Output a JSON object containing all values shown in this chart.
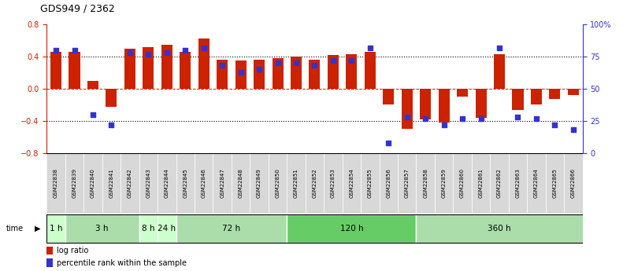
{
  "title": "GDS949 / 2362",
  "samples": [
    "GSM22838",
    "GSM22839",
    "GSM22840",
    "GSM22841",
    "GSM22842",
    "GSM22843",
    "GSM22844",
    "GSM22845",
    "GSM22846",
    "GSM22847",
    "GSM22848",
    "GSM22849",
    "GSM22850",
    "GSM22851",
    "GSM22852",
    "GSM22853",
    "GSM22854",
    "GSM22855",
    "GSM22856",
    "GSM22857",
    "GSM22858",
    "GSM22859",
    "GSM22860",
    "GSM22861",
    "GSM22862",
    "GSM22863",
    "GSM22864",
    "GSM22865",
    "GSM22866"
  ],
  "log_ratio": [
    0.46,
    0.46,
    0.1,
    -0.22,
    0.5,
    0.52,
    0.55,
    0.46,
    0.62,
    0.36,
    0.35,
    0.36,
    0.38,
    0.4,
    0.36,
    0.42,
    0.43,
    0.46,
    -0.2,
    -0.5,
    -0.38,
    -0.42,
    -0.1,
    -0.36,
    0.43,
    -0.26,
    -0.2,
    -0.13,
    -0.08
  ],
  "percentile_rank": [
    80,
    80,
    30,
    22,
    78,
    77,
    78,
    80,
    82,
    68,
    63,
    65,
    70,
    70,
    68,
    72,
    72,
    82,
    8,
    28,
    27,
    22,
    27,
    27,
    82,
    28,
    27,
    22,
    18
  ],
  "time_groups": [
    {
      "label": "1 h",
      "start": 0,
      "end": 1,
      "color": "#ccffcc"
    },
    {
      "label": "3 h",
      "start": 1,
      "end": 5,
      "color": "#aaddaa"
    },
    {
      "label": "8 h",
      "start": 5,
      "end": 6,
      "color": "#ccffcc"
    },
    {
      "label": "24 h",
      "start": 6,
      "end": 7,
      "color": "#ccffcc"
    },
    {
      "label": "72 h",
      "start": 7,
      "end": 13,
      "color": "#aaddaa"
    },
    {
      "label": "120 h",
      "start": 13,
      "end": 20,
      "color": "#66cc66"
    },
    {
      "label": "360 h",
      "start": 20,
      "end": 29,
      "color": "#aaddaa"
    }
  ],
  "bar_color": "#cc2200",
  "dot_color": "#3333cc",
  "ylim": [
    -0.8,
    0.8
  ],
  "y_ticks_left": [
    -0.8,
    -0.4,
    0.0,
    0.4,
    0.8
  ],
  "y_ticks_right": [
    0,
    25,
    50,
    75,
    100
  ],
  "dotted_lines": [
    -0.4,
    0.0,
    0.4
  ]
}
